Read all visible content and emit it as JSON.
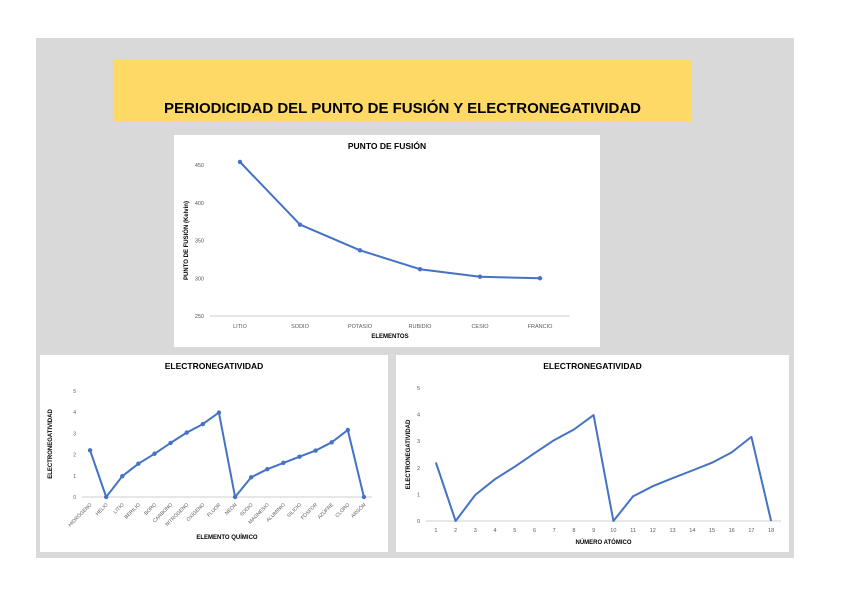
{
  "page": {
    "title": "PERIODICIDAD DEL PUNTO DE FUSIÓN Y ELECTRONEGATIVIDAD"
  },
  "colors": {
    "series": "#4472c4",
    "banner": "#ffd966",
    "background": "#d9d9d9"
  },
  "chart_data": [
    {
      "type": "line",
      "title": "PUNTO DE FUSIÓN",
      "xlabel": "ELEMENTOS",
      "ylabel": "PUNTO DE FUSIÓN (Kelvin)",
      "categories": [
        "LITIO",
        "SODIO",
        "POTASIO",
        "RUBIDIO",
        "CESIO",
        "FRANCIO"
      ],
      "values": [
        454,
        371,
        337,
        312,
        302,
        300
      ],
      "ylim": [
        250,
        450
      ],
      "yticks": [
        250,
        300,
        350,
        400,
        450
      ],
      "markers": true,
      "grid": false
    },
    {
      "type": "line",
      "title": "ELECTRONEGATIVIDAD",
      "xlabel": "ELEMENTO QUÍMICO",
      "ylabel": "ELECTRONEGATIVIDAD",
      "categories": [
        "HIDRÓGENO",
        "HELIO",
        "LITIO",
        "BERILIO",
        "BORO",
        "CARBONO",
        "NITRÓGENO",
        "OXÍGENO",
        "FLUOR",
        "NEÓN",
        "SODIO",
        "MAGNESIO",
        "ALUMINIO",
        "SILICIO",
        "FÓSFOR",
        "AZÚFRE",
        "CLORO",
        "ARGÓN"
      ],
      "values": [
        2.2,
        0,
        0.98,
        1.57,
        2.04,
        2.55,
        3.04,
        3.44,
        3.98,
        0,
        0.93,
        1.31,
        1.61,
        1.9,
        2.19,
        2.58,
        3.16,
        0
      ],
      "ylim": [
        0,
        5
      ],
      "yticks": [
        0,
        1,
        2,
        3,
        4,
        5
      ],
      "markers": true,
      "grid": false
    },
    {
      "type": "line",
      "title": "ELECTRONEGATIVIDAD",
      "xlabel": "NÚMERO ATÓMICO",
      "ylabel": "ELECTRONEGATIVIDAD",
      "categories": [
        "1",
        "2",
        "3",
        "4",
        "5",
        "6",
        "7",
        "8",
        "9",
        "10",
        "11",
        "12",
        "13",
        "14",
        "15",
        "16",
        "17",
        "18"
      ],
      "values": [
        2.2,
        0,
        0.98,
        1.57,
        2.04,
        2.55,
        3.04,
        3.44,
        3.98,
        0,
        0.93,
        1.31,
        1.61,
        1.9,
        2.19,
        2.58,
        3.16,
        0
      ],
      "ylim": [
        0,
        5
      ],
      "yticks": [
        0,
        1,
        2,
        3,
        4,
        5
      ],
      "markers": false,
      "grid": false
    }
  ]
}
